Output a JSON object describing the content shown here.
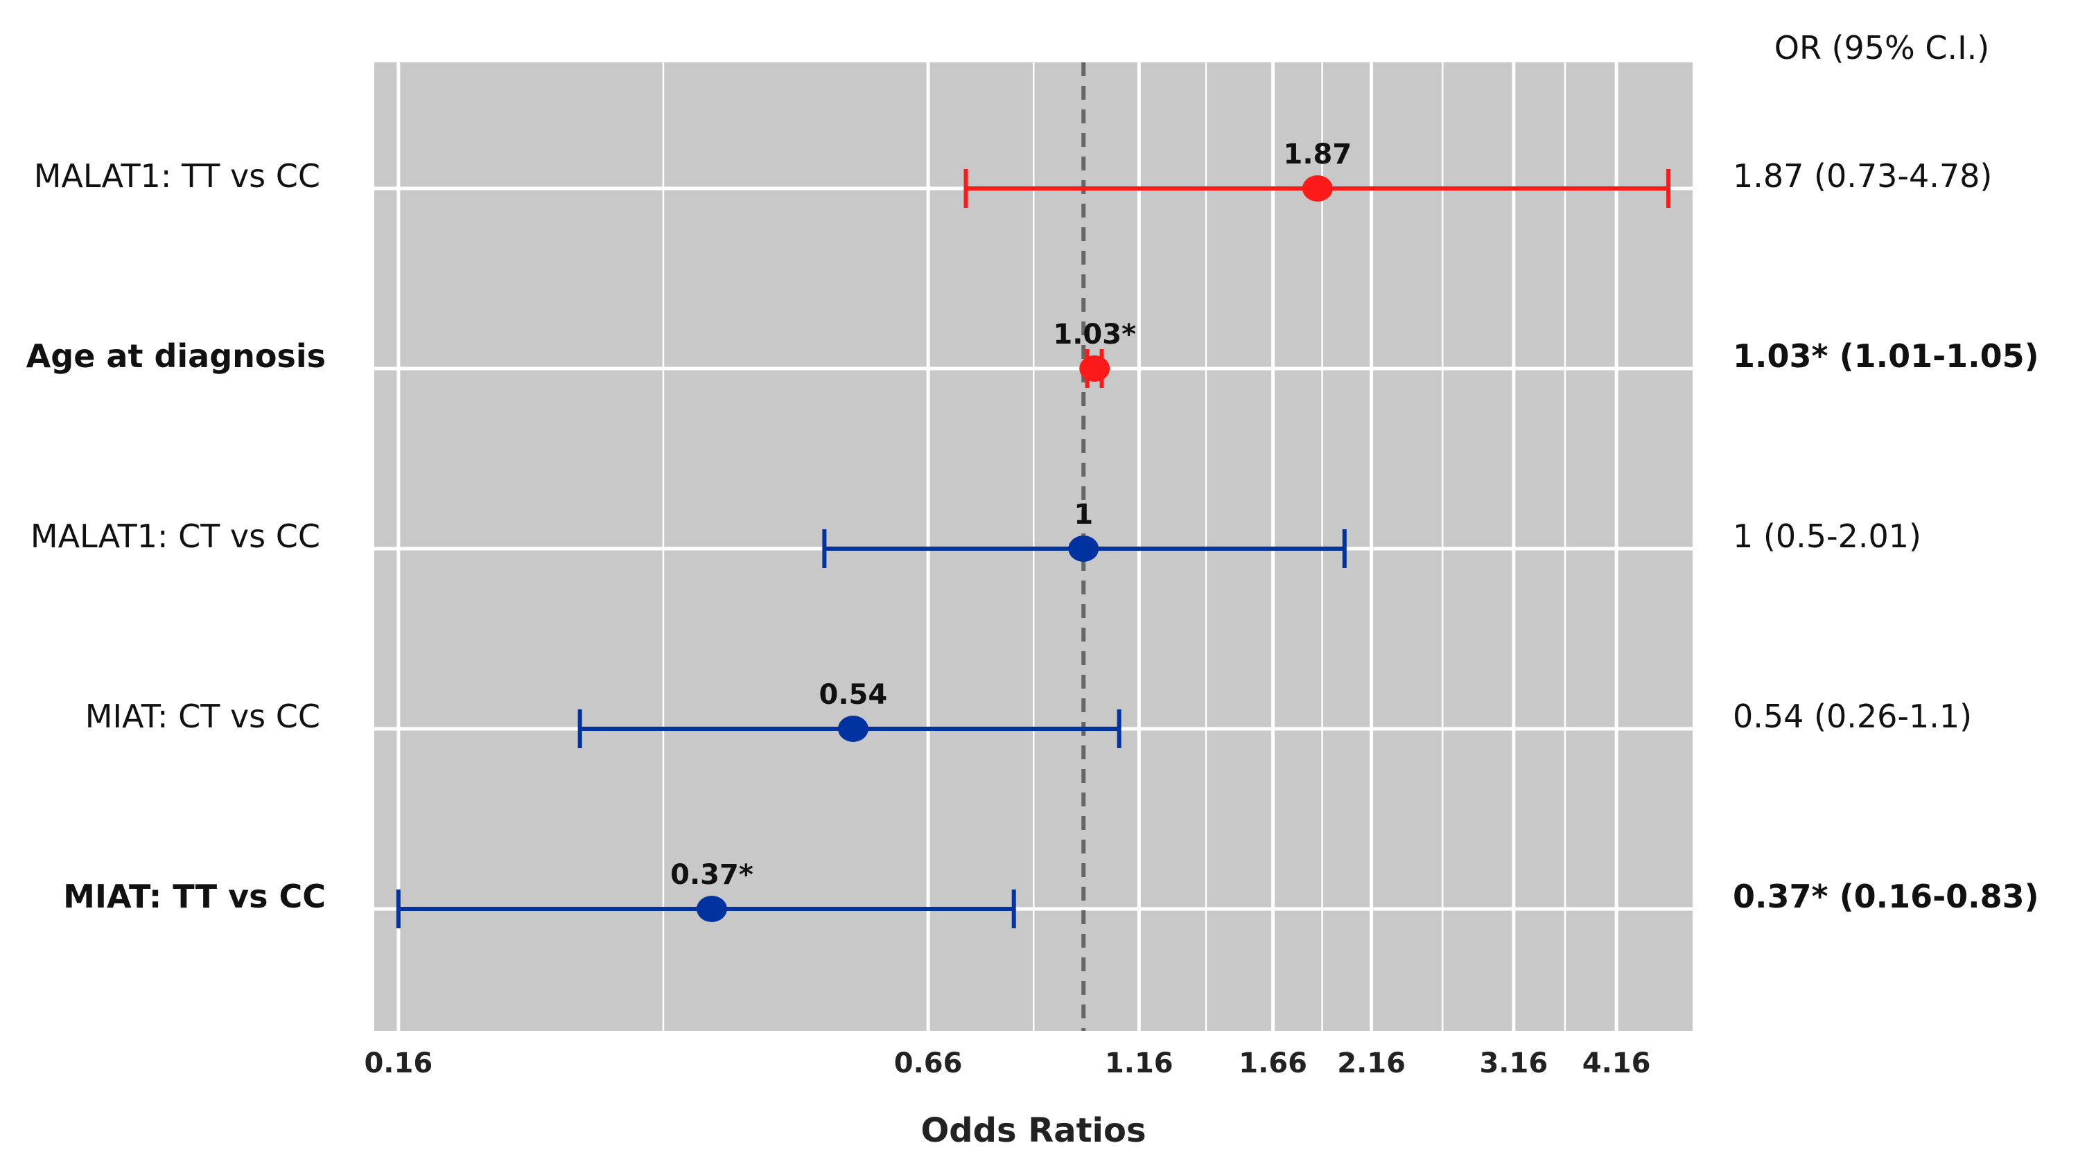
{
  "chart_data": {
    "type": "forest",
    "xlabel": "Odds Ratios",
    "x_scale": "log",
    "xlim": [
      0.15,
      5.1
    ],
    "x_ticks": [
      0.16,
      0.66,
      1.16,
      1.66,
      2.16,
      3.16,
      4.16
    ],
    "x_tick_labels": [
      "0.16",
      "0.66",
      "1.16",
      "1.66",
      "2.16",
      "3.16",
      "4.16"
    ],
    "reference_line": 1,
    "grid": true,
    "background_color": "#c8c8c8",
    "right_column_header": "OR (95% C.I.)",
    "colors": {
      "risk": "#ff1a1a",
      "protective": "#0033a0"
    },
    "rows": [
      {
        "label": "MALAT1: TT vs CC",
        "or": 1.87,
        "lower": 0.73,
        "upper": 4.78,
        "or_label": "1.87",
        "ci_text": "1.87 (0.73-4.78)",
        "color": "#ff1a1a",
        "bold": false
      },
      {
        "label": "Age at diagnosis",
        "or": 1.03,
        "lower": 1.01,
        "upper": 1.05,
        "or_label": "1.03*",
        "ci_text": "1.03* (1.01-1.05)",
        "color": "#ff1a1a",
        "bold": true
      },
      {
        "label": "MALAT1: CT vs CC",
        "or": 1,
        "lower": 0.5,
        "upper": 2.01,
        "or_label": "1",
        "ci_text": "1 (0.5-2.01)",
        "color": "#0033a0",
        "bold": false
      },
      {
        "label": "MIAT: CT vs CC",
        "or": 0.54,
        "lower": 0.26,
        "upper": 1.1,
        "or_label": "0.54",
        "ci_text": "0.54 (0.26-1.1)",
        "color": "#0033a0",
        "bold": false
      },
      {
        "label": "MIAT: TT vs CC",
        "or": 0.37,
        "lower": 0.16,
        "upper": 0.83,
        "or_label": "0.37*",
        "ci_text": "0.37* (0.16-0.83)",
        "color": "#0033a0",
        "bold": true
      }
    ]
  }
}
